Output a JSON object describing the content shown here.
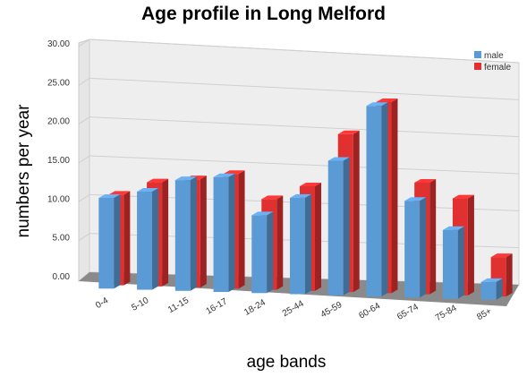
{
  "chart_data": {
    "type": "bar",
    "title": "Age profile in Long Melford",
    "xlabel": "age bands",
    "ylabel": "numbers per year",
    "categories": [
      "0-4",
      "5-10",
      "11-15",
      "16-17",
      "18-24",
      "25-44",
      "45-59",
      "60-64",
      "65-74",
      "75-84",
      "85+"
    ],
    "series": [
      {
        "name": "male",
        "values": [
          11.7,
          12.7,
          14.4,
          15.0,
          10.2,
          12.7,
          17.8,
          25.3,
          12.9,
          9.2,
          2.4
        ],
        "color": "#5b9bd5"
      },
      {
        "name": "female",
        "values": [
          11.7,
          13.5,
          14.1,
          15.0,
          11.9,
          13.8,
          20.9,
          25.4,
          14.9,
          13.0,
          5.3
        ],
        "color": "#e03030"
      }
    ],
    "yticks": [
      "0.00",
      "5.00",
      "10.00",
      "15.00",
      "20.00",
      "25.00",
      "30.00"
    ],
    "ylim": [
      0,
      30
    ],
    "grid": true,
    "legend": "top-right"
  }
}
